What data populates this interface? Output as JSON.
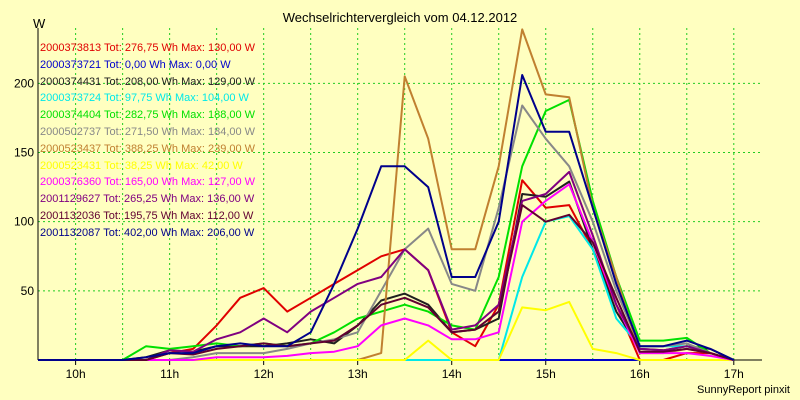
{
  "chart_data": {
    "type": "line",
    "title": "Wechselrichtervergleich vom 04.12.2012",
    "ylabel": "W",
    "footer": "SunnyReport pinxit",
    "ylim": [
      0,
      240
    ],
    "yticks": [
      50,
      100,
      150,
      200
    ],
    "xlim": [
      9.6,
      17.3
    ],
    "xticks": [
      "10h",
      "11h",
      "12h",
      "13h",
      "14h",
      "15h",
      "16h",
      "17h"
    ],
    "x": [
      9.5,
      10.0,
      10.25,
      10.5,
      10.75,
      11.0,
      11.25,
      11.5,
      11.75,
      12.0,
      12.25,
      12.5,
      12.75,
      13.0,
      13.25,
      13.5,
      13.75,
      14.0,
      14.25,
      14.5,
      14.75,
      15.0,
      15.25,
      15.5,
      15.75,
      16.0,
      16.25,
      16.5,
      16.75,
      17.0
    ],
    "series": [
      {
        "name": "2000373813",
        "legend": "2000373813 Tot: 276,75 Wh Max: 130,00 W",
        "color": "#e00000",
        "values": [
          0,
          0,
          0,
          0,
          0,
          5,
          8,
          25,
          45,
          52,
          35,
          45,
          55,
          65,
          75,
          80,
          65,
          20,
          10,
          40,
          130,
          110,
          112,
          80,
          40,
          0,
          0,
          5,
          5,
          0
        ]
      },
      {
        "name": "2000373721",
        "legend": "2000373721 Tot: 0,00 Wh Max: 0,00 W",
        "color": "#0000cc",
        "values": [
          0,
          0,
          0,
          0,
          0,
          0,
          0,
          0,
          0,
          0,
          0,
          0,
          0,
          0,
          0,
          0,
          0,
          0,
          0,
          0,
          0,
          0,
          0,
          0,
          0,
          0,
          0,
          0,
          0,
          0
        ]
      },
      {
        "name": "2000374431",
        "legend": "2000374431 Tot: 208,00 Wh Max: 129,00 W",
        "color": "#202020",
        "values": [
          0,
          0,
          0,
          0,
          2,
          7,
          6,
          10,
          10,
          10,
          12,
          15,
          12,
          25,
          43,
          48,
          40,
          20,
          22,
          30,
          120,
          118,
          129,
          80,
          35,
          8,
          7,
          10,
          8,
          0
        ]
      },
      {
        "name": "2000373724",
        "legend": "2000373724 Tot: 97,75 Wh Max: 104,00 W",
        "color": "#00e8e8",
        "values": [
          0,
          0,
          0,
          0,
          0,
          0,
          0,
          0,
          0,
          0,
          0,
          0,
          0,
          0,
          0,
          0,
          0,
          0,
          0,
          0,
          60,
          100,
          104,
          80,
          30,
          10,
          10,
          10,
          5,
          0
        ]
      },
      {
        "name": "2000374404",
        "legend": "2000374404 Tot: 282,75 Wh Max: 188,00 W",
        "color": "#00e000",
        "values": [
          0,
          0,
          0,
          0,
          10,
          8,
          10,
          12,
          10,
          12,
          10,
          12,
          20,
          30,
          35,
          40,
          35,
          25,
          22,
          60,
          140,
          180,
          188,
          115,
          60,
          14,
          14,
          16,
          5,
          0
        ]
      },
      {
        "name": "2000502737",
        "legend": "2000502737 Tot: 271,50 Wh Max: 184,00 W",
        "color": "#888888",
        "values": [
          0,
          0,
          0,
          0,
          0,
          0,
          2,
          5,
          5,
          5,
          8,
          12,
          15,
          20,
          50,
          80,
          95,
          55,
          50,
          110,
          184,
          160,
          140,
          100,
          50,
          10,
          10,
          12,
          5,
          0
        ]
      },
      {
        "name": "2000523437",
        "legend": "2000523437 Tot: 388,25 Wh Max: 239,00 W",
        "color": "#c08030",
        "values": [
          0,
          0,
          0,
          0,
          0,
          0,
          0,
          0,
          0,
          0,
          0,
          0,
          0,
          0,
          5,
          205,
          160,
          80,
          80,
          140,
          239,
          192,
          190,
          110,
          60,
          5,
          5,
          8,
          5,
          0
        ]
      },
      {
        "name": "2000523431",
        "legend": "2000523431 Tot: 38,25 Wh Max: 42,00 W",
        "color": "#ffff00",
        "values": [
          0,
          0,
          0,
          0,
          0,
          0,
          0,
          0,
          0,
          0,
          0,
          0,
          0,
          0,
          0,
          0,
          14,
          0,
          0,
          0,
          38,
          36,
          42,
          8,
          5,
          0,
          0,
          0,
          0,
          0
        ]
      },
      {
        "name": "2000376360",
        "legend": "2000376360 Tot: 165,00 Wh Max: 127,00 W",
        "color": "#ff00ff",
        "values": [
          0,
          0,
          0,
          0,
          0,
          0,
          0,
          2,
          2,
          2,
          3,
          5,
          6,
          10,
          25,
          30,
          25,
          15,
          15,
          20,
          100,
          115,
          127,
          85,
          40,
          5,
          5,
          5,
          3,
          0
        ]
      },
      {
        "name": "2001129627",
        "legend": "2001129627 Tot: 265,25 Wh Max: 136,00 W",
        "color": "#800080",
        "values": [
          0,
          0,
          0,
          0,
          0,
          7,
          6,
          15,
          20,
          30,
          20,
          35,
          45,
          55,
          60,
          80,
          65,
          22,
          25,
          40,
          115,
          120,
          136,
          90,
          40,
          8,
          7,
          10,
          5,
          0
        ]
      },
      {
        "name": "2001132036",
        "legend": "2001132036 Tot: 195,75 Wh Max: 112,00 W",
        "color": "#600030",
        "values": [
          0,
          0,
          0,
          0,
          0,
          5,
          4,
          8,
          10,
          12,
          10,
          12,
          14,
          25,
          40,
          45,
          38,
          20,
          22,
          35,
          112,
          100,
          105,
          85,
          45,
          6,
          6,
          8,
          5,
          0
        ]
      },
      {
        "name": "2001132087",
        "legend": "2001132087 Tot: 402,00 Wh Max: 206,00 W",
        "color": "#00008b",
        "values": [
          0,
          0,
          0,
          0,
          2,
          5,
          5,
          10,
          12,
          10,
          10,
          20,
          55,
          95,
          140,
          140,
          125,
          60,
          60,
          100,
          206,
          165,
          165,
          110,
          55,
          10,
          10,
          14,
          8,
          0
        ]
      }
    ]
  }
}
